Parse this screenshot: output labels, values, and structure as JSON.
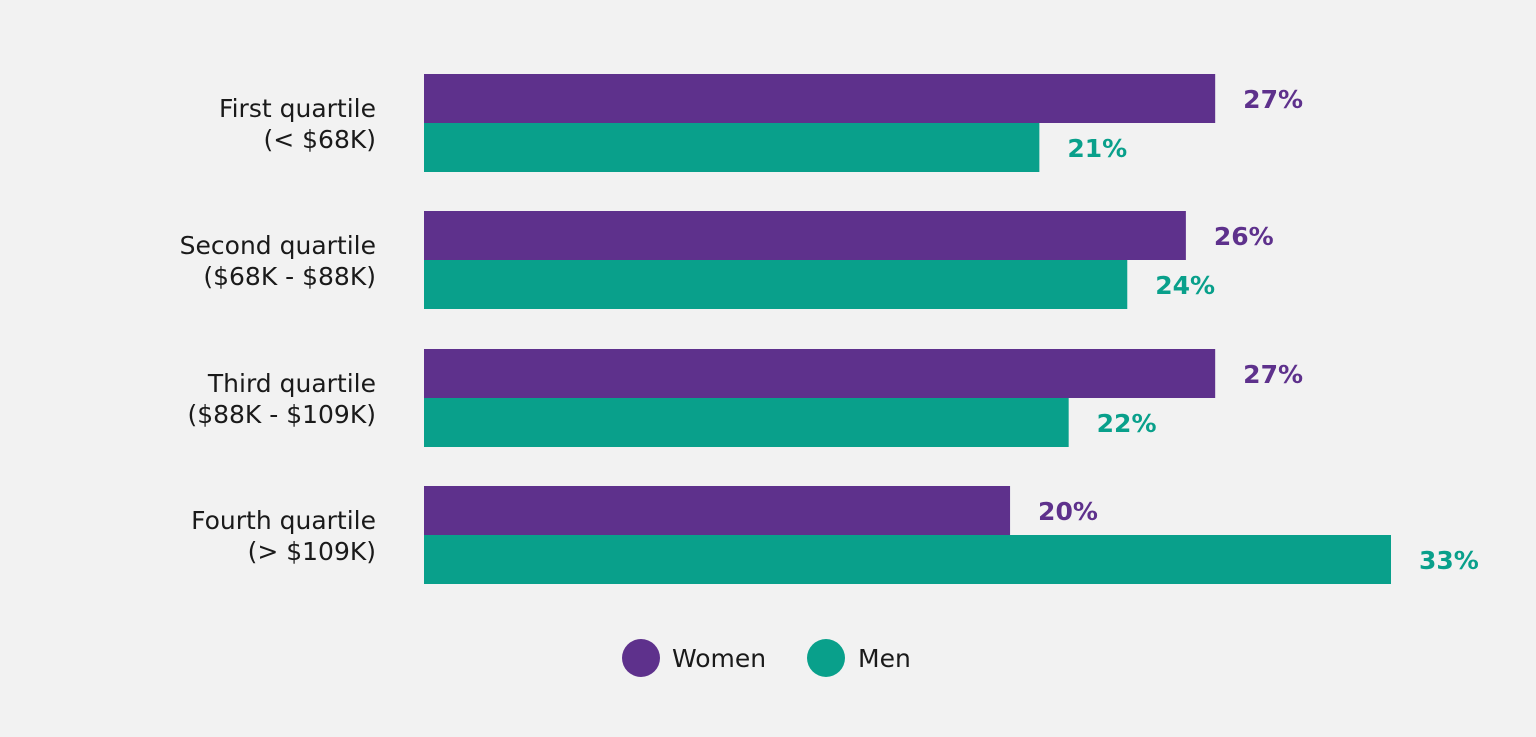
{
  "chart_data": {
    "type": "bar",
    "orientation": "horizontal",
    "categories": [
      [
        "First quartile",
        "(< $68K)"
      ],
      [
        "Second quartile",
        "($68K - $88K)"
      ],
      [
        "Third quartile",
        "($88K - $109K)"
      ],
      [
        "Fourth quartile",
        "(> $109K)"
      ]
    ],
    "series": [
      {
        "name": "Women",
        "color": "#5e318c",
        "values": [
          27,
          26,
          27,
          20
        ],
        "value_labels": [
          "27%",
          "26%",
          "27%",
          "20%"
        ]
      },
      {
        "name": "Men",
        "color": "#09a08b",
        "values": [
          21,
          24,
          22,
          33
        ],
        "value_labels": [
          "21%",
          "24%",
          "22%",
          "33%"
        ]
      }
    ],
    "value_unit": "%",
    "xlim": [
      0,
      33
    ],
    "grid": false,
    "legend_position": "bottom-center"
  }
}
